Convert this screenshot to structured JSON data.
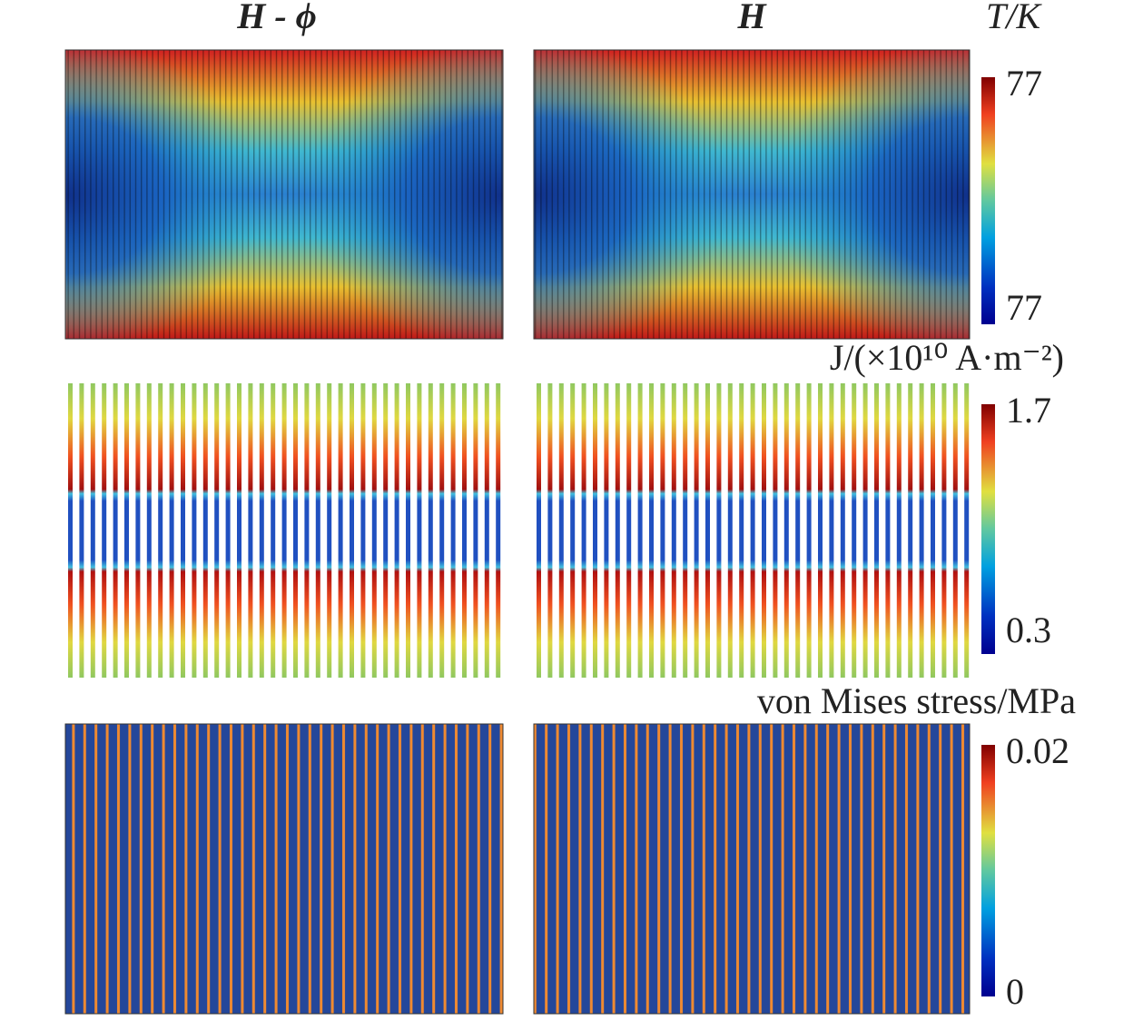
{
  "columns": {
    "left": {
      "title": "H - ϕ"
    },
    "right": {
      "title": "H"
    }
  },
  "colorbars": [
    {
      "label": "T/K",
      "max": "77",
      "min": "77"
    },
    {
      "label": "J/(×10¹⁰ A·m⁻²)",
      "max": "1.7",
      "min": "0.3"
    },
    {
      "label": "von Mises stress/MPa",
      "max": "0.02",
      "min": "0"
    }
  ]
}
